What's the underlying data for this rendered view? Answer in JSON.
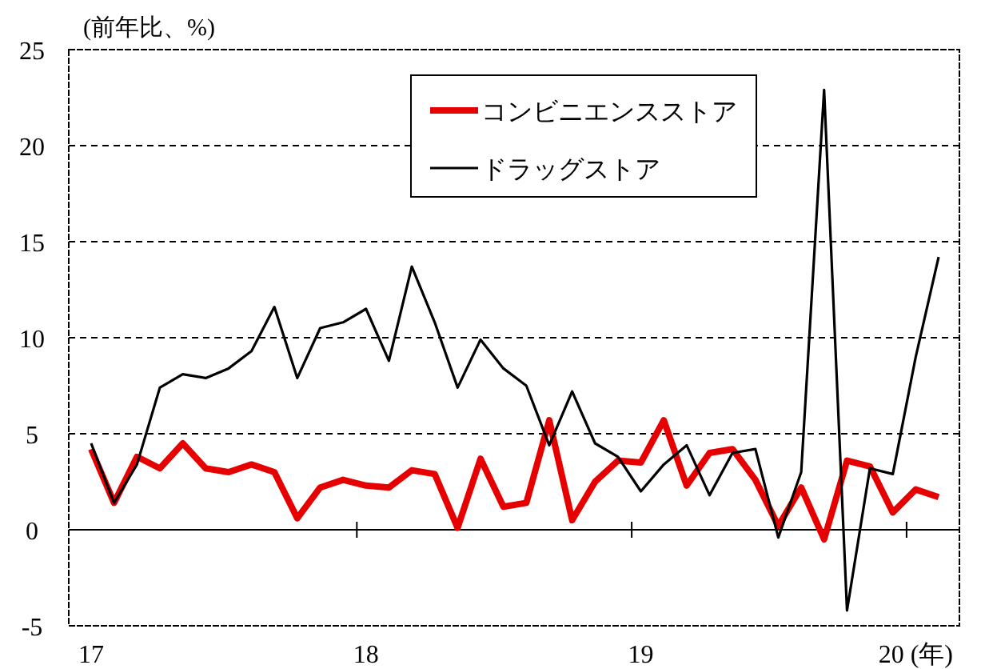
{
  "chart_data": {
    "type": "line",
    "ylabel": "(前年比、%)",
    "categories": [
      "17",
      null,
      null,
      null,
      null,
      null,
      null,
      null,
      null,
      null,
      null,
      null,
      "18",
      null,
      null,
      null,
      null,
      null,
      null,
      null,
      null,
      null,
      null,
      null,
      "19",
      null,
      null,
      null,
      null,
      null,
      null,
      null,
      null,
      null,
      null,
      null,
      "20 (年)",
      null
    ],
    "series": [
      {
        "name": "コンビニエンスストア",
        "color": "#e60000",
        "values": [
          4.2,
          1.4,
          3.8,
          3.2,
          4.5,
          3.2,
          3.0,
          3.4,
          3.0,
          0.6,
          2.2,
          2.6,
          2.3,
          2.2,
          3.1,
          2.9,
          0.1,
          3.7,
          1.2,
          1.4,
          5.7,
          0.5,
          2.5,
          3.6,
          3.5,
          5.7,
          2.3,
          4.0,
          4.2,
          2.6,
          0.2,
          2.2,
          -0.5,
          3.6,
          3.3,
          0.9,
          2.1,
          1.7
        ]
      },
      {
        "name": "ドラッグストア",
        "color": "#000000",
        "values": [
          4.5,
          1.4,
          3.4,
          7.4,
          8.1,
          7.9,
          8.4,
          9.3,
          11.6,
          7.9,
          10.5,
          10.8,
          11.5,
          8.8,
          13.7,
          10.8,
          7.4,
          9.9,
          8.4,
          7.5,
          4.4,
          7.2,
          4.5,
          3.8,
          2.0,
          3.4,
          4.4,
          1.8,
          4.0,
          4.2,
          -0.4,
          3.0,
          22.9,
          -4.2,
          3.2,
          2.9,
          9.0,
          14.2
        ]
      }
    ],
    "ylim": [
      -5,
      25
    ],
    "yticks": [
      -5,
      0,
      5,
      10,
      15,
      20,
      25
    ],
    "grid": "y",
    "legend": "top",
    "marker": "none",
    "line_style": "solid"
  }
}
